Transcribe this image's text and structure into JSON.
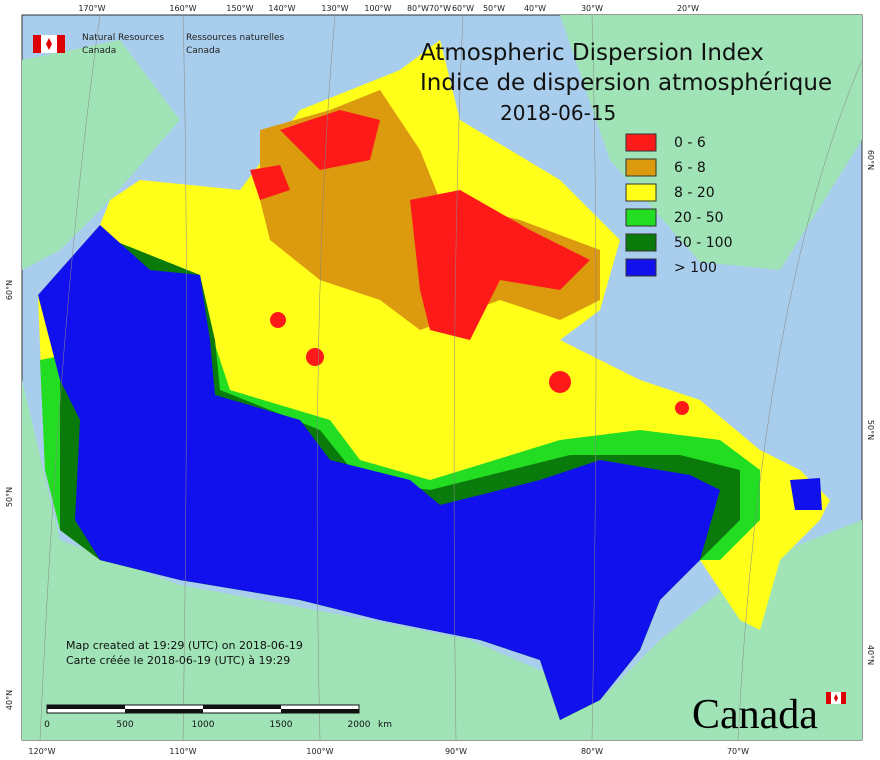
{
  "header": {
    "org_en_1": "Natural Resources",
    "org_en_2": "Canada",
    "org_fr_1": "Ressources naturelles",
    "org_fr_2": "Canada"
  },
  "title": {
    "en": "Atmospheric Dispersion Index",
    "fr": "Indice de dispersion atmosphérique",
    "date": "2018-06-15"
  },
  "legend": [
    {
      "label": "0 - 6",
      "color": "#ff1a1a"
    },
    {
      "label": "6 - 8",
      "color": "#dc9a0e"
    },
    {
      "label": "8 - 20",
      "color": "#ffff1a"
    },
    {
      "label": "20 - 50",
      "color": "#22dd22"
    },
    {
      "label": "50 - 100",
      "color": "#0a7a0a"
    },
    {
      "label": "> 100",
      "color": "#1111ee"
    }
  ],
  "graticule": {
    "top": [
      "170°W",
      "160°W",
      "150°W",
      "140°W",
      "130°W",
      "100°W",
      "80°W",
      "70°W",
      "60°W",
      "50°W",
      "40°W",
      "30°W",
      "20°W"
    ],
    "bottom": [
      "120°W",
      "110°W",
      "100°W",
      "90°W",
      "80°W",
      "70°W"
    ],
    "left": [
      "60°N",
      "50°N",
      "40°N"
    ],
    "right": [
      "60°N",
      "50°N",
      "40°N"
    ]
  },
  "footer": {
    "created_en": "Map created at 19:29 (UTC) on 2018-06-19",
    "created_fr": "Carte créée le 2018-06-19 (UTC) à 19:29",
    "wordmark": "Canada"
  },
  "scale": {
    "labels": [
      "0",
      "500",
      "1000",
      "1500",
      "2000"
    ],
    "unit": "km"
  }
}
